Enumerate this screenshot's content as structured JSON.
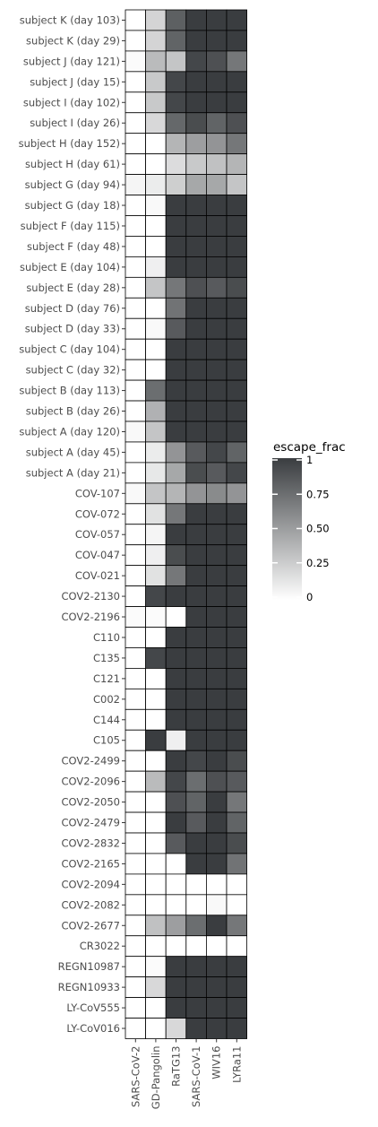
{
  "chart_data": {
    "type": "heatmap",
    "title": "",
    "xlabel": "",
    "ylabel": "",
    "x_categories": [
      "SARS-CoV-2",
      "GD-Pangolin",
      "RaTG13",
      "SARS-CoV-1",
      "WIV16",
      "LYRa11"
    ],
    "y_categories": [
      "subject K (day 103)",
      "subject K (day 29)",
      "subject J (day 121)",
      "subject J (day 15)",
      "subject I (day 102)",
      "subject I (day 26)",
      "subject H (day 152)",
      "subject H (day 61)",
      "subject G (day 94)",
      "subject G (day 18)",
      "subject F (day 115)",
      "subject F (day 48)",
      "subject E (day 104)",
      "subject E (day 28)",
      "subject D (day 76)",
      "subject D (day 33)",
      "subject C (day 104)",
      "subject C (day 32)",
      "subject B (day 113)",
      "subject B (day 26)",
      "subject A (day 120)",
      "subject A (day 45)",
      "subject A (day 21)",
      "COV-107",
      "COV-072",
      "COV-057",
      "COV-047",
      "COV-021",
      "COV2-2130",
      "COV2-2196",
      "C110",
      "C135",
      "C121",
      "C002",
      "C144",
      "C105",
      "COV2-2499",
      "COV2-2096",
      "COV2-2050",
      "COV2-2479",
      "COV2-2832",
      "COV2-2165",
      "COV2-2094",
      "COV2-2082",
      "COV2-2677",
      "CR3022",
      "REGN10987",
      "REGN10933",
      "LY-CoV555",
      "LY-CoV016"
    ],
    "values": [
      [
        0.0,
        0.22,
        0.82,
        1.0,
        1.0,
        1.0
      ],
      [
        0.0,
        0.22,
        0.8,
        1.0,
        1.0,
        1.0
      ],
      [
        0.02,
        0.35,
        0.3,
        0.95,
        0.9,
        0.7
      ],
      [
        0.0,
        0.28,
        0.95,
        1.0,
        1.0,
        1.0
      ],
      [
        0.0,
        0.28,
        0.95,
        1.0,
        1.0,
        1.0
      ],
      [
        0.0,
        0.2,
        0.78,
        0.92,
        0.8,
        0.9
      ],
      [
        0.0,
        0.0,
        0.38,
        0.5,
        0.55,
        0.7
      ],
      [
        0.0,
        0.0,
        0.18,
        0.28,
        0.32,
        0.38
      ],
      [
        0.05,
        0.1,
        0.25,
        0.45,
        0.45,
        0.3
      ],
      [
        0.0,
        0.03,
        1.0,
        1.0,
        1.0,
        1.0
      ],
      [
        0.0,
        0.0,
        1.0,
        1.0,
        1.0,
        1.0
      ],
      [
        0.0,
        0.0,
        1.0,
        1.0,
        1.0,
        1.0
      ],
      [
        0.0,
        0.08,
        1.0,
        1.0,
        1.0,
        1.0
      ],
      [
        0.0,
        0.3,
        0.7,
        0.9,
        0.85,
        0.92
      ],
      [
        0.0,
        0.0,
        0.72,
        1.0,
        1.0,
        1.0
      ],
      [
        0.0,
        0.03,
        0.85,
        1.0,
        1.0,
        1.0
      ],
      [
        0.0,
        0.0,
        1.0,
        1.0,
        1.0,
        1.0
      ],
      [
        0.0,
        0.0,
        1.0,
        1.0,
        1.0,
        1.0
      ],
      [
        0.0,
        0.75,
        1.0,
        1.0,
        1.0,
        1.0
      ],
      [
        0.0,
        0.4,
        1.0,
        1.0,
        1.0,
        1.0
      ],
      [
        0.03,
        0.3,
        1.0,
        1.0,
        1.0,
        1.0
      ],
      [
        0.0,
        0.1,
        0.55,
        0.85,
        0.95,
        0.8
      ],
      [
        0.0,
        0.12,
        0.45,
        0.92,
        0.85,
        0.95
      ],
      [
        0.03,
        0.3,
        0.38,
        0.55,
        0.6,
        0.55
      ],
      [
        0.0,
        0.15,
        0.7,
        1.0,
        1.0,
        1.0
      ],
      [
        0.0,
        0.05,
        1.0,
        1.0,
        1.0,
        1.0
      ],
      [
        0.0,
        0.08,
        0.92,
        1.0,
        1.0,
        1.0
      ],
      [
        0.0,
        0.15,
        0.7,
        1.0,
        1.0,
        1.0
      ],
      [
        0.0,
        0.95,
        1.0,
        1.0,
        1.0,
        1.0
      ],
      [
        0.02,
        0.02,
        0.0,
        1.0,
        1.0,
        1.0
      ],
      [
        0.0,
        0.0,
        1.0,
        1.0,
        1.0,
        1.0
      ],
      [
        0.0,
        0.95,
        1.0,
        1.0,
        1.0,
        1.0
      ],
      [
        0.0,
        0.0,
        1.0,
        1.0,
        1.0,
        1.0
      ],
      [
        0.0,
        0.0,
        1.0,
        1.0,
        1.0,
        1.0
      ],
      [
        0.0,
        0.0,
        1.0,
        1.0,
        1.0,
        1.0
      ],
      [
        0.0,
        1.0,
        0.08,
        1.0,
        1.0,
        1.0
      ],
      [
        0.0,
        0.0,
        1.0,
        0.95,
        1.0,
        0.92
      ],
      [
        0.0,
        0.35,
        0.95,
        0.75,
        0.9,
        0.85
      ],
      [
        0.0,
        0.0,
        0.9,
        0.8,
        1.0,
        0.7
      ],
      [
        0.0,
        0.0,
        1.0,
        0.85,
        1.0,
        0.8
      ],
      [
        0.0,
        0.0,
        0.85,
        1.0,
        1.0,
        0.92
      ],
      [
        0.0,
        0.0,
        0.0,
        1.0,
        1.0,
        0.72
      ],
      [
        0.0,
        0.0,
        0.0,
        0.0,
        0.0,
        0.0
      ],
      [
        0.0,
        0.0,
        0.0,
        0.0,
        0.03,
        0.0
      ],
      [
        0.0,
        0.32,
        0.5,
        0.75,
        1.0,
        0.7
      ],
      [
        0.0,
        0.0,
        0.0,
        0.0,
        0.0,
        0.0
      ],
      [
        0.0,
        0.02,
        1.0,
        1.0,
        1.0,
        1.0
      ],
      [
        0.0,
        0.2,
        1.0,
        1.0,
        1.0,
        1.0
      ],
      [
        0.0,
        0.0,
        1.0,
        1.0,
        1.0,
        1.0
      ],
      [
        0.0,
        0.0,
        0.2,
        1.0,
        1.0,
        1.0
      ]
    ],
    "color_scale": {
      "low": "#ffffff",
      "high": "#3a3d40",
      "range": [
        0,
        1
      ]
    },
    "legend": {
      "title": "escape_frac",
      "position": "right",
      "ticks": [
        1,
        0.75,
        0.5,
        0.25,
        0
      ],
      "tick_labels": [
        "1",
        "0.75",
        "0.50",
        "0.25",
        "0"
      ]
    },
    "grid": false
  }
}
